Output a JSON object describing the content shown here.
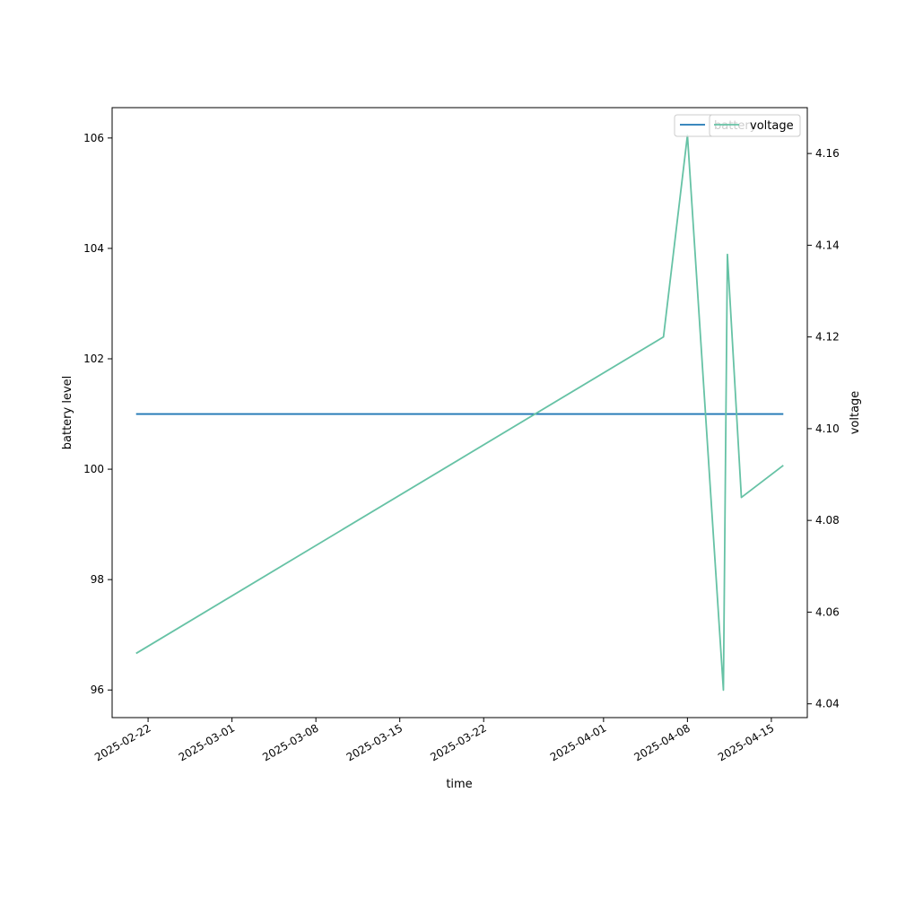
{
  "chart_data": {
    "type": "line",
    "title": "",
    "xlabel": "time",
    "x_ticks": [
      "2025-02-22",
      "2025-03-01",
      "2025-03-08",
      "2025-03-15",
      "2025-03-22",
      "2025-04-01",
      "2025-04-08",
      "2025-04-15"
    ],
    "xlim": [
      "2025-02-19",
      "2025-04-18"
    ],
    "y_left": {
      "label": "battery level",
      "ylim": [
        95.5,
        106.55
      ],
      "ticks": [
        96,
        98,
        100,
        102,
        104,
        106
      ]
    },
    "y_right": {
      "label": "voltage",
      "ylim": [
        4.037,
        4.17
      ],
      "ticks": [
        4.04,
        4.06,
        4.08,
        4.1,
        4.12,
        4.14,
        4.16
      ]
    },
    "series": [
      {
        "name": "battery",
        "axis": "left",
        "color": "#1f77b4",
        "x": [
          "2025-02-21",
          "2025-04-16"
        ],
        "y": [
          101,
          101
        ]
      },
      {
        "name": "voltage",
        "axis": "right",
        "color": "#66c2a5",
        "x": [
          "2025-02-21",
          "2025-04-06",
          "2025-04-08",
          "2025-04-11",
          "2025-04-11 08:00",
          "2025-04-12 12:00",
          "2025-04-16"
        ],
        "y": [
          4.051,
          4.12,
          4.164,
          4.043,
          4.138,
          4.085,
          4.092
        ]
      }
    ],
    "legends": [
      {
        "placement": "upper-right",
        "entries": [
          "battery"
        ]
      },
      {
        "placement": "upper-right",
        "entries": [
          "voltage"
        ]
      }
    ],
    "grid": false
  }
}
